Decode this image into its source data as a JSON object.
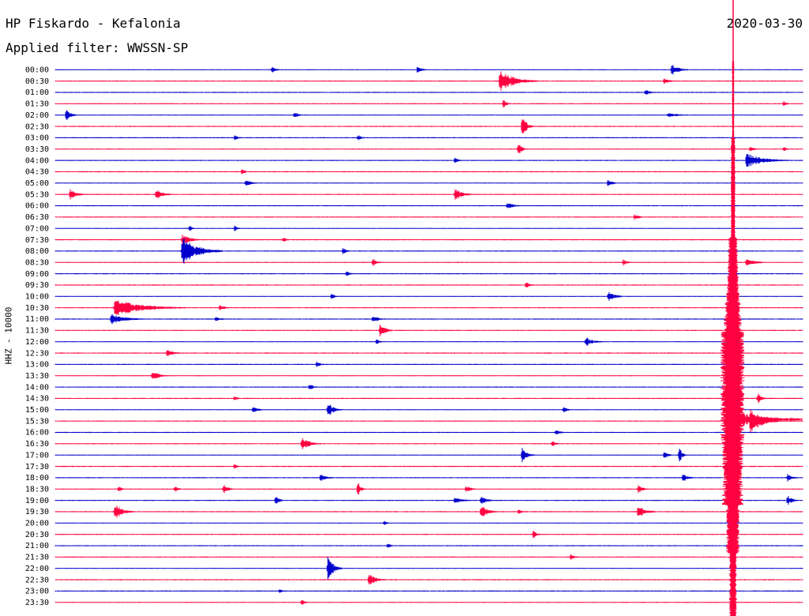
{
  "header": {
    "station": "HP Fiskardo - Kefalonia",
    "date": "2020-03-30",
    "filter": "Applied filter: WWSSN-SP"
  },
  "chart_data": {
    "type": "line",
    "title": "HP Fiskardo - Kefalonia",
    "ylabel": "HHZ - 10000",
    "xlabel": "",
    "colors": [
      "#0000cc",
      "#ff0040"
    ],
    "tick_labels": [
      "00:00",
      "00:30",
      "01:00",
      "01:30",
      "02:00",
      "02:30",
      "03:00",
      "03:30",
      "04:00",
      "04:30",
      "05:00",
      "05:30",
      "06:00",
      "06:30",
      "07:00",
      "07:30",
      "08:00",
      "08:30",
      "09:00",
      "09:30",
      "10:00",
      "10:30",
      "11:00",
      "11:30",
      "12:00",
      "12:30",
      "13:00",
      "13:30",
      "14:00",
      "14:30",
      "15:00",
      "15:30",
      "16:00",
      "16:30",
      "17:00",
      "17:30",
      "18:00",
      "18:30",
      "19:00",
      "19:30",
      "20:00",
      "20:30",
      "21:00",
      "21:30",
      "22:00",
      "22:30",
      "23:00",
      "23:30"
    ],
    "series": [
      {
        "values": [
          [
            0,
            29.0,
            4,
            0.6
          ],
          [
            0,
            48.5,
            4,
            0.7
          ],
          [
            0,
            82.5,
            7,
            1.2
          ],
          [
            1,
            59.5,
            16,
            2.0
          ],
          [
            1,
            81.5,
            5,
            0.6
          ],
          [
            2,
            79.0,
            4,
            0.6
          ],
          [
            3,
            60.0,
            3,
            0.8
          ],
          [
            3,
            97.5,
            3,
            0.5
          ],
          [
            4,
            1.5,
            4,
            1.5
          ],
          [
            4,
            32.0,
            4,
            0.7
          ],
          [
            4,
            82.0,
            14,
            0.3
          ],
          [
            5,
            62.5,
            5,
            2.0
          ],
          [
            6,
            24.0,
            5,
            0.4
          ],
          [
            6,
            40.5,
            4,
            0.5
          ],
          [
            7,
            62.0,
            3,
            1.6
          ],
          [
            7,
            93.0,
            5,
            0.4
          ],
          [
            7,
            97.5,
            3,
            0.4
          ],
          [
            8,
            92.5,
            18,
            1.3
          ],
          [
            8,
            53.5,
            3,
            0.6
          ],
          [
            9,
            25.0,
            3,
            0.5
          ],
          [
            10,
            25.5,
            7,
            0.5
          ],
          [
            10,
            74.0,
            4,
            0.8
          ],
          [
            11,
            2.0,
            7,
            1.0
          ],
          [
            11,
            13.5,
            7,
            0.9
          ],
          [
            11,
            53.5,
            8,
            1.0
          ],
          [
            12,
            60.5,
            7,
            0.6
          ],
          [
            13,
            77.5,
            5,
            0.5
          ],
          [
            14,
            18.0,
            3,
            0.5
          ],
          [
            14,
            24.0,
            3,
            0.5
          ],
          [
            15,
            17.0,
            8,
            1.0
          ],
          [
            15,
            30.5,
            3,
            0.5
          ],
          [
            16,
            17.0,
            17,
            2.5
          ],
          [
            16,
            38.5,
            4,
            0.6
          ],
          [
            17,
            42.5,
            4,
            0.8
          ],
          [
            17,
            76.0,
            4,
            0.6
          ],
          [
            17,
            92.5,
            8,
            0.9
          ],
          [
            18,
            39.0,
            3,
            0.6
          ],
          [
            19,
            63.0,
            4,
            0.6
          ],
          [
            20,
            37.0,
            3,
            0.6
          ],
          [
            20,
            74.0,
            7,
            1.0
          ],
          [
            21,
            8.0,
            30,
            1.5
          ],
          [
            21,
            22.0,
            6,
            0.5
          ],
          [
            22,
            7.5,
            14,
            1.0
          ],
          [
            22,
            21.5,
            5,
            0.5
          ],
          [
            22,
            42.5,
            6,
            0.6
          ],
          [
            23,
            43.5,
            5,
            1.5
          ],
          [
            24,
            71.0,
            8,
            0.8
          ],
          [
            24,
            43.0,
            3,
            0.5
          ],
          [
            25,
            15.0,
            6,
            0.8
          ],
          [
            26,
            35.0,
            4,
            0.5
          ],
          [
            27,
            13.0,
            7,
            1.0
          ],
          [
            28,
            34.0,
            5,
            0.5
          ],
          [
            29,
            24.0,
            3,
            0.5
          ],
          [
            29,
            94.0,
            4,
            1.0
          ],
          [
            30,
            26.5,
            4,
            0.8
          ],
          [
            30,
            36.5,
            6,
            1.4
          ],
          [
            30,
            68.0,
            4,
            0.6
          ],
          [
            31,
            93.0,
            12,
            2.5
          ],
          [
            32,
            67.0,
            4,
            0.6
          ],
          [
            33,
            33.0,
            8,
            1.3
          ],
          [
            33,
            66.5,
            4,
            0.5
          ],
          [
            34,
            62.5,
            5,
            1.5
          ],
          [
            34,
            81.5,
            4,
            0.7
          ],
          [
            34,
            83.5,
            3,
            1.5
          ],
          [
            35,
            24.0,
            3,
            0.5
          ],
          [
            36,
            35.5,
            7,
            0.6
          ],
          [
            36,
            84.0,
            5,
            0.8
          ],
          [
            36,
            98.0,
            5,
            0.7
          ],
          [
            37,
            8.5,
            3,
            0.6
          ],
          [
            37,
            16.0,
            4,
            0.6
          ],
          [
            37,
            22.5,
            5,
            0.9
          ],
          [
            37,
            40.5,
            3,
            1.3
          ],
          [
            37,
            55.0,
            5,
            0.6
          ],
          [
            37,
            78.0,
            5,
            0.8
          ],
          [
            38,
            29.5,
            4,
            0.8
          ],
          [
            38,
            53.5,
            7,
            0.7
          ],
          [
            38,
            57.0,
            6,
            0.7
          ],
          [
            38,
            98.0,
            5,
            0.9
          ],
          [
            39,
            8.0,
            8,
            1.5
          ],
          [
            39,
            57.0,
            7,
            1.3
          ],
          [
            39,
            78.0,
            8,
            1.2
          ],
          [
            39,
            62.0,
            3,
            0.5
          ],
          [
            40,
            44.0,
            3,
            0.5
          ],
          [
            41,
            64.0,
            3,
            0.8
          ],
          [
            42,
            44.5,
            3,
            0.5
          ],
          [
            43,
            69.0,
            4,
            0.5
          ],
          [
            44,
            36.5,
            6,
            2.5
          ],
          [
            45,
            42.0,
            7,
            1.2
          ],
          [
            46,
            30.0,
            3,
            0.5
          ],
          [
            47,
            33.0,
            3,
            0.5
          ]
        ]
      }
    ]
  }
}
